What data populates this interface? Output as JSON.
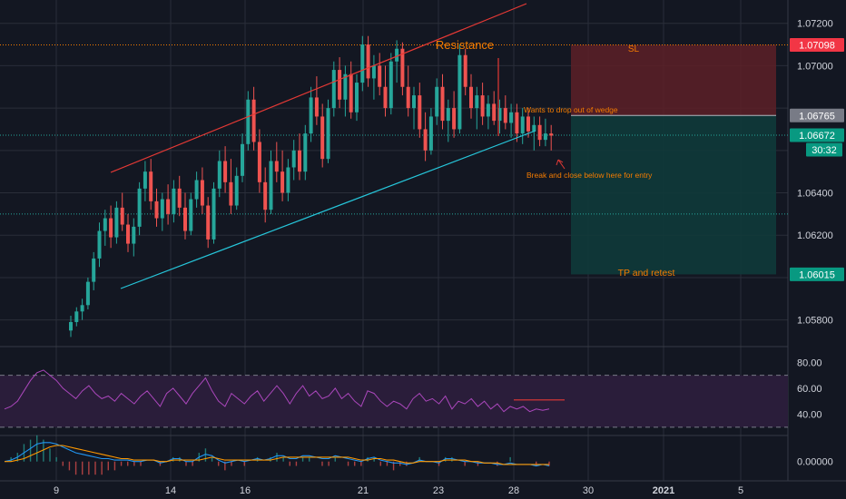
{
  "chart_data": {
    "type": "candlestick",
    "symbol_hint": "",
    "price_axis": {
      "min": 1.057,
      "max": 1.0731,
      "ticks": [
        "1.07200",
        "1.07000",
        "1.06400",
        "1.06200",
        "1.05800"
      ]
    },
    "price_badges": [
      {
        "label": "1.07098",
        "kind": "sl"
      },
      {
        "label": "1.06765",
        "kind": "entry"
      },
      {
        "label": "1.06672",
        "kind": "current"
      },
      {
        "label": "30:32",
        "kind": "countdown"
      },
      {
        "label": "1.06015",
        "kind": "tp"
      }
    ],
    "x_axis": {
      "ticks": [
        {
          "label": "9",
          "bold": false
        },
        {
          "label": "14",
          "bold": false
        },
        {
          "label": "16",
          "bold": false
        },
        {
          "label": "21",
          "bold": false
        },
        {
          "label": "23",
          "bold": false
        },
        {
          "label": "28",
          "bold": false
        },
        {
          "label": "30",
          "bold": false
        },
        {
          "label": "2021",
          "bold": true
        },
        {
          "label": "5",
          "bold": false
        }
      ]
    },
    "annotations": {
      "resistance": "Resistance",
      "wedge_note": "Wants to drop out of wedge",
      "entry_note": "Break and close below here for entry",
      "sl": "SL",
      "tp": "TP and retest"
    },
    "levels": {
      "sl": 1.07098,
      "entry": 1.06765,
      "current": 1.06672,
      "tp": 1.06015,
      "lower_dotted": 1.063
    },
    "candles": [
      [
        1.0575,
        1.0582,
        1.0572,
        1.0579
      ],
      [
        1.0579,
        1.0586,
        1.0577,
        1.0584
      ],
      [
        1.0584,
        1.059,
        1.058,
        1.0587
      ],
      [
        1.0587,
        1.06,
        1.0585,
        1.0598
      ],
      [
        1.0598,
        1.0612,
        1.0594,
        1.0609
      ],
      [
        1.0609,
        1.0626,
        1.0605,
        1.0622
      ],
      [
        1.0622,
        1.0632,
        1.0615,
        1.0628
      ],
      [
        1.0628,
        1.0634,
        1.0614,
        1.0619
      ],
      [
        1.0619,
        1.0636,
        1.0616,
        1.0633
      ],
      [
        1.0633,
        1.064,
        1.0622,
        1.0625
      ],
      [
        1.0625,
        1.063,
        1.0612,
        1.0616
      ],
      [
        1.0616,
        1.0628,
        1.061,
        1.0624
      ],
      [
        1.0624,
        1.0645,
        1.062,
        1.0642
      ],
      [
        1.0642,
        1.0655,
        1.0636,
        1.065
      ],
      [
        1.065,
        1.0656,
        1.0632,
        1.0636
      ],
      [
        1.0636,
        1.0642,
        1.0624,
        1.0628
      ],
      [
        1.0628,
        1.064,
        1.0622,
        1.0637
      ],
      [
        1.0637,
        1.0644,
        1.0625,
        1.063
      ],
      [
        1.063,
        1.0646,
        1.0626,
        1.0642
      ],
      [
        1.0642,
        1.0648,
        1.0629,
        1.0633
      ],
      [
        1.0633,
        1.064,
        1.0618,
        1.0622
      ],
      [
        1.0622,
        1.064,
        1.062,
        1.0637
      ],
      [
        1.0637,
        1.065,
        1.0633,
        1.0646
      ],
      [
        1.0646,
        1.0652,
        1.063,
        1.0634
      ],
      [
        1.0634,
        1.0638,
        1.0614,
        1.0618
      ],
      [
        1.0618,
        1.0645,
        1.0616,
        1.0642
      ],
      [
        1.0642,
        1.066,
        1.0638,
        1.0655
      ],
      [
        1.0655,
        1.0662,
        1.064,
        1.0645
      ],
      [
        1.0645,
        1.0656,
        1.063,
        1.0634
      ],
      [
        1.0634,
        1.0652,
        1.0632,
        1.0648
      ],
      [
        1.0648,
        1.0668,
        1.0645,
        1.0663
      ],
      [
        1.0663,
        1.0688,
        1.066,
        1.0684
      ],
      [
        1.0684,
        1.069,
        1.066,
        1.0664
      ],
      [
        1.0664,
        1.067,
        1.064,
        1.0645
      ],
      [
        1.0645,
        1.0652,
        1.0626,
        1.0632
      ],
      [
        1.0632,
        1.066,
        1.063,
        1.0655
      ],
      [
        1.0655,
        1.0664,
        1.0645,
        1.065
      ],
      [
        1.065,
        1.066,
        1.0636,
        1.064
      ],
      [
        1.064,
        1.0656,
        1.0636,
        1.0652
      ],
      [
        1.0652,
        1.0665,
        1.0646,
        1.066
      ],
      [
        1.066,
        1.0668,
        1.0646,
        1.065
      ],
      [
        1.065,
        1.0672,
        1.0646,
        1.0668
      ],
      [
        1.0668,
        1.069,
        1.0664,
        1.0685
      ],
      [
        1.0685,
        1.0695,
        1.0672,
        1.0676
      ],
      [
        1.0676,
        1.0682,
        1.0652,
        1.0656
      ],
      [
        1.0656,
        1.0684,
        1.0654,
        1.068
      ],
      [
        1.068,
        1.0702,
        1.0676,
        1.0698
      ],
      [
        1.0698,
        1.0704,
        1.068,
        1.0684
      ],
      [
        1.0684,
        1.07,
        1.0676,
        1.0696
      ],
      [
        1.0696,
        1.0702,
        1.0675,
        1.0678
      ],
      [
        1.0678,
        1.0696,
        1.0674,
        1.0692
      ],
      [
        1.0692,
        1.0714,
        1.0688,
        1.071
      ],
      [
        1.071,
        1.0714,
        1.069,
        1.0694
      ],
      [
        1.0694,
        1.0705,
        1.0684,
        1.07
      ],
      [
        1.07,
        1.0706,
        1.0686,
        1.069
      ],
      [
        1.069,
        1.07,
        1.0676,
        1.068
      ],
      [
        1.068,
        1.0706,
        1.0677,
        1.0702
      ],
      [
        1.0702,
        1.0712,
        1.0692,
        1.0708
      ],
      [
        1.0708,
        1.0711,
        1.0686,
        1.069
      ],
      [
        1.069,
        1.07,
        1.0676,
        1.068
      ],
      [
        1.068,
        1.069,
        1.067,
        1.0686
      ],
      [
        1.0686,
        1.0692,
        1.0666,
        1.067
      ],
      [
        1.067,
        1.0678,
        1.0655,
        1.066
      ],
      [
        1.066,
        1.068,
        1.0658,
        1.0676
      ],
      [
        1.0676,
        1.0694,
        1.0672,
        1.069
      ],
      [
        1.069,
        1.0696,
        1.067,
        1.0674
      ],
      [
        1.0674,
        1.0684,
        1.0664,
        1.068
      ],
      [
        1.068,
        1.0688,
        1.0666,
        1.067
      ],
      [
        1.067,
        1.071,
        1.0668,
        1.0705
      ],
      [
        1.0705,
        1.0708,
        1.0686,
        1.069
      ],
      [
        1.069,
        1.0696,
        1.0675,
        1.068
      ],
      [
        1.068,
        1.069,
        1.067,
        1.0686
      ],
      [
        1.0686,
        1.0692,
        1.0672,
        1.0676
      ],
      [
        1.0676,
        1.0686,
        1.067,
        1.0682
      ],
      [
        1.0682,
        1.0688,
        1.0672,
        1.0674
      ],
      [
        1.0674,
        1.0684,
        1.0668,
        1.068
      ],
      [
        1.068,
        1.0686,
        1.067,
        1.0673
      ],
      [
        1.0673,
        1.0682,
        1.0666,
        1.0678
      ],
      [
        1.0678,
        1.0682,
        1.0664,
        1.0668
      ],
      [
        1.0668,
        1.068,
        1.0663,
        1.0676
      ],
      [
        1.0676,
        1.068,
        1.0666,
        1.0669
      ],
      [
        1.0669,
        1.0676,
        1.066,
        1.0672
      ],
      [
        1.0672,
        1.0676,
        1.0662,
        1.0665
      ],
      [
        1.0665,
        1.0675,
        1.0662,
        1.0668
      ],
      [
        1.0668,
        1.0672,
        1.066,
        1.0667
      ]
    ],
    "rsi": {
      "ticks": [
        "80.00",
        "60.00",
        "40.00"
      ],
      "min": 25,
      "max": 90,
      "bands": [
        70,
        30
      ],
      "values": [
        44,
        46,
        50,
        58,
        66,
        72,
        74,
        70,
        66,
        60,
        56,
        52,
        58,
        62,
        56,
        52,
        54,
        50,
        56,
        52,
        48,
        54,
        58,
        52,
        46,
        56,
        60,
        54,
        48,
        56,
        62,
        68,
        58,
        50,
        46,
        56,
        52,
        48,
        54,
        58,
        50,
        56,
        62,
        56,
        48,
        56,
        62,
        54,
        58,
        52,
        54,
        60,
        52,
        56,
        50,
        46,
        58,
        56,
        50,
        46,
        50,
        48,
        44,
        52,
        56,
        50,
        52,
        48,
        54,
        44,
        50,
        48,
        52,
        46,
        50,
        44,
        48,
        42,
        46,
        44,
        46,
        42,
        44,
        43,
        44
      ],
      "resistance_level": 51
    },
    "macd": {
      "ticks": [
        "0.00000"
      ],
      "min": -0.0012,
      "max": 0.0016,
      "macd": [
        0,
        0.0001,
        0.0003,
        0.0006,
        0.0009,
        0.0012,
        0.0013,
        0.0013,
        0.0012,
        0.001,
        0.0008,
        0.0006,
        0.0005,
        0.0004,
        0.0003,
        0.0002,
        0.0002,
        0.0001,
        0.0001,
        0.0001,
        0.0,
        0.0,
        0.0001,
        0.0001,
        -0.0001,
        0.0,
        0.0002,
        0.0002,
        0.0,
        0.0,
        0.0003,
        0.0005,
        0.0004,
        0.0001,
        -0.0001,
        0.0,
        0.0001,
        0.0,
        0.0001,
        0.0002,
        0.0001,
        0.0002,
        0.0004,
        0.0004,
        0.0002,
        0.0002,
        0.0004,
        0.0004,
        0.0003,
        0.0002,
        0.0002,
        0.0004,
        0.0003,
        0.0002,
        0.0001,
        0.0,
        0.0002,
        0.0003,
        0.0001,
        0.0,
        -0.0001,
        -0.0001,
        -0.0002,
        -0.0001,
        0.0001,
        0.0,
        0.0,
        -0.0001,
        0.0002,
        0.0002,
        0.0001,
        0.0,
        0.0,
        -0.0001,
        -0.0001,
        -0.0001,
        -0.0002,
        -0.0002,
        -0.0001,
        -0.0002,
        -0.0002,
        -0.0002,
        -0.0003,
        -0.0002,
        -0.0003
      ],
      "signal": [
        0,
        0,
        0.0001,
        0.0002,
        0.0004,
        0.0006,
        0.0008,
        0.001,
        0.0011,
        0.0011,
        0.001,
        0.0009,
        0.0008,
        0.0007,
        0.0006,
        0.0005,
        0.0004,
        0.0003,
        0.0002,
        0.0002,
        0.0001,
        0.0001,
        0.0001,
        0.0001,
        0.0,
        0.0,
        0.0001,
        0.0001,
        0.0001,
        0.0001,
        0.0001,
        0.0002,
        0.0003,
        0.0002,
        0.0001,
        0.0001,
        0.0001,
        0.0001,
        0.0001,
        0.0001,
        0.0001,
        0.0001,
        0.0002,
        0.0003,
        0.0003,
        0.0003,
        0.0003,
        0.0003,
        0.0003,
        0.0003,
        0.0003,
        0.0003,
        0.0003,
        0.0003,
        0.0002,
        0.0001,
        0.0001,
        0.0002,
        0.0002,
        0.0001,
        0.0001,
        0.0,
        -0.0001,
        -0.0001,
        0.0,
        0.0,
        0.0,
        0.0,
        0.0001,
        0.0001,
        0.0001,
        0.0001,
        0.0,
        0.0,
        -0.0001,
        -0.0001,
        -0.0001,
        -0.0002,
        -0.0002,
        -0.0002,
        -0.0002,
        -0.0002,
        -0.0002,
        -0.0002,
        -0.0002
      ]
    },
    "colors": {
      "bg": "#131722",
      "up": "#26a69a",
      "down": "#ef5350",
      "grid": "#2a2e39",
      "axis_text": "#d1d4dc",
      "resistance_line": "#e53935",
      "support_line": "#26c6da",
      "annotation": "#f57c00",
      "sl_zone": "#5d2027",
      "tp_zone": "#0f3a3a",
      "rsi_line": "#ab47bc",
      "rsi_fill": "#2a1d3a",
      "macd_line": "#2196f3",
      "signal_line": "#ff9800",
      "badge_red": "#f23645",
      "badge_teal": "#089981",
      "badge_grey": "#787b86"
    }
  }
}
